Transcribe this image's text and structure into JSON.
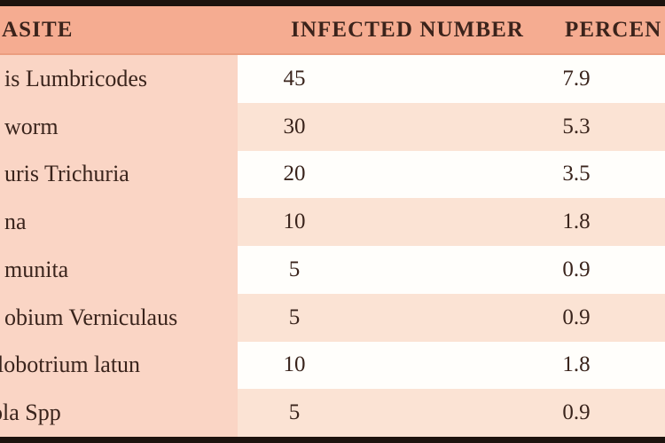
{
  "table": {
    "header": {
      "parasite": "ASITE",
      "infected": "INFECTED NUMBER",
      "percentage": "PERCEN"
    },
    "rows": [
      {
        "parasite": "is Lumbricodes",
        "infected": "45",
        "percentage": "7.9"
      },
      {
        "parasite": "worm",
        "infected": "30",
        "percentage": "5.3"
      },
      {
        "parasite": "uris Trichuria",
        "infected": "20",
        "percentage": "3.5"
      },
      {
        "parasite": "na",
        "infected": "10",
        "percentage": "1.8"
      },
      {
        "parasite": "munita",
        "infected": "5",
        "percentage": "0.9"
      },
      {
        "parasite": "obium Verniculaus",
        "infected": "5",
        "percentage": "0.9"
      },
      {
        "parasite": "lobotrium latun",
        "infected": "10",
        "percentage": "1.8"
      },
      {
        "parasite": "ola Spp",
        "infected": "5",
        "percentage": "0.9"
      }
    ]
  },
  "colors": {
    "border": "#1d130e",
    "header_bg": "#f5ac91",
    "left_column_bg": "#fad5c5",
    "row_white": "#fffefb",
    "row_pink": "#fbe3d4",
    "text": "#3a241c"
  },
  "chart_data": {
    "type": "table",
    "columns": [
      "ASITE",
      "INFECTED NUMBER",
      "PERCEN"
    ],
    "rows": [
      [
        "is Lumbricodes",
        45,
        7.9
      ],
      [
        "worm",
        30,
        5.3
      ],
      [
        "uris Trichuria",
        20,
        3.5
      ],
      [
        "na",
        10,
        1.8
      ],
      [
        "munita",
        5,
        0.9
      ],
      [
        "obium Verniculaus",
        5,
        0.9
      ],
      [
        "lobotrium latun",
        10,
        1.8
      ],
      [
        "ola Spp",
        5,
        0.9
      ]
    ]
  }
}
